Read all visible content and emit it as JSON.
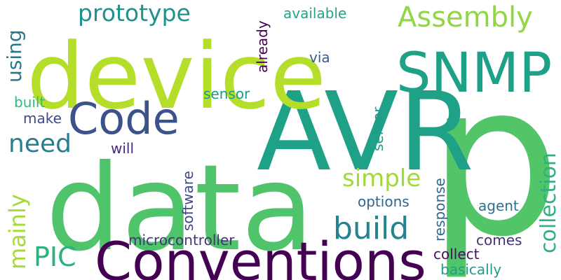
{
  "words": [
    {
      "text": "p",
      "color": "#52c569"
    },
    {
      "text": "AVR",
      "color": "#1fa187"
    },
    {
      "text": "data",
      "color": "#50c46a"
    },
    {
      "text": "device",
      "color": "#b5de2b"
    },
    {
      "text": "Conventions",
      "color": "#440154"
    },
    {
      "text": "SNMP",
      "color": "#1fa187"
    },
    {
      "text": "Code",
      "color": "#3b528b"
    },
    {
      "text": "prototype",
      "color": "#21918c"
    },
    {
      "text": "Assembly",
      "color": "#90d743"
    },
    {
      "text": "build",
      "color": "#26828e"
    },
    {
      "text": "need",
      "color": "#277f8e"
    },
    {
      "text": "simple",
      "color": "#a0da39"
    },
    {
      "text": "PIC",
      "color": "#2db27d"
    },
    {
      "text": "microcontroller",
      "color": "#46327e"
    },
    {
      "text": "collection",
      "color": "#2db27d"
    },
    {
      "text": "mainly",
      "color": "#a5db36"
    },
    {
      "text": "using",
      "color": "#2a788e"
    },
    {
      "text": "available",
      "color": "#21a585"
    },
    {
      "text": "already",
      "color": "#440154"
    },
    {
      "text": "via",
      "color": "#355f8d"
    },
    {
      "text": "sensor",
      "color": "#1f9a8a"
    },
    {
      "text": "built",
      "color": "#37b878"
    },
    {
      "text": "make",
      "color": "#3e4989"
    },
    {
      "text": "will",
      "color": "#482878"
    },
    {
      "text": "software",
      "color": "#3f4788"
    },
    {
      "text": "server",
      "color": "#1e9c89"
    },
    {
      "text": "options",
      "color": "#31668e"
    },
    {
      "text": "agent",
      "color": "#2c728e"
    },
    {
      "text": "response",
      "color": "#31688e"
    },
    {
      "text": "comes",
      "color": "#472f7d"
    },
    {
      "text": "collect",
      "color": "#470e61"
    },
    {
      "text": "basically",
      "color": "#1f9e89"
    }
  ]
}
